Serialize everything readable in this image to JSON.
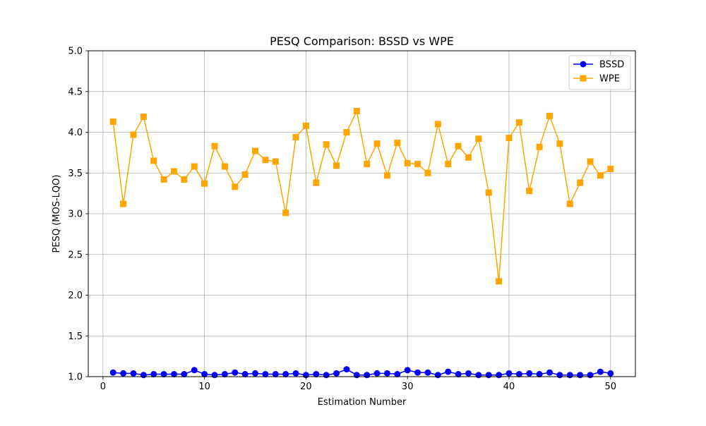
{
  "chart_data": {
    "type": "line",
    "title": "PESQ Comparison: BSSD vs WPE",
    "xlabel": "Estimation Number",
    "ylabel": "PESQ (MOS-LQO)",
    "xlim": [
      -1.45,
      52.45
    ],
    "ylim": [
      1.0,
      5.0
    ],
    "xticks": [
      0,
      10,
      20,
      30,
      40,
      50
    ],
    "yticks": [
      1.0,
      1.5,
      2.0,
      2.5,
      3.0,
      3.5,
      4.0,
      4.5,
      5.0
    ],
    "ytick_labels": [
      "1.0",
      "1.5",
      "2.0",
      "2.5",
      "3.0",
      "3.5",
      "4.0",
      "4.5",
      "5.0"
    ],
    "grid": true,
    "legend_position": "top-right",
    "x": [
      1,
      2,
      3,
      4,
      5,
      6,
      7,
      8,
      9,
      10,
      11,
      12,
      13,
      14,
      15,
      16,
      17,
      18,
      19,
      20,
      21,
      22,
      23,
      24,
      25,
      26,
      27,
      28,
      29,
      30,
      31,
      32,
      33,
      34,
      35,
      36,
      37,
      38,
      39,
      40,
      41,
      42,
      43,
      44,
      45,
      46,
      47,
      48,
      49,
      50
    ],
    "series": [
      {
        "name": "BSSD",
        "color": "#0000ff",
        "marker": "circle",
        "values": [
          1.05,
          1.04,
          1.04,
          1.02,
          1.03,
          1.03,
          1.03,
          1.03,
          1.08,
          1.03,
          1.02,
          1.03,
          1.05,
          1.03,
          1.04,
          1.03,
          1.03,
          1.03,
          1.04,
          1.02,
          1.03,
          1.02,
          1.04,
          1.09,
          1.02,
          1.02,
          1.04,
          1.04,
          1.03,
          1.08,
          1.05,
          1.05,
          1.02,
          1.06,
          1.03,
          1.04,
          1.02,
          1.02,
          1.02,
          1.04,
          1.03,
          1.04,
          1.03,
          1.05,
          1.02,
          1.02,
          1.02,
          1.02,
          1.06,
          1.04
        ]
      },
      {
        "name": "WPE",
        "color": "#ffa500",
        "marker": "square",
        "values": [
          4.13,
          3.12,
          3.97,
          4.19,
          3.65,
          3.42,
          3.52,
          3.42,
          3.58,
          3.37,
          3.83,
          3.58,
          3.33,
          3.48,
          3.77,
          3.66,
          3.64,
          3.01,
          3.94,
          4.08,
          3.38,
          3.85,
          3.59,
          4.0,
          4.26,
          3.61,
          3.86,
          3.47,
          3.87,
          3.62,
          3.61,
          3.5,
          4.1,
          3.61,
          3.83,
          3.69,
          3.92,
          3.26,
          2.17,
          3.93,
          4.12,
          3.28,
          3.82,
          4.2,
          3.86,
          3.12,
          3.38,
          3.64,
          3.47,
          3.55
        ]
      }
    ]
  }
}
